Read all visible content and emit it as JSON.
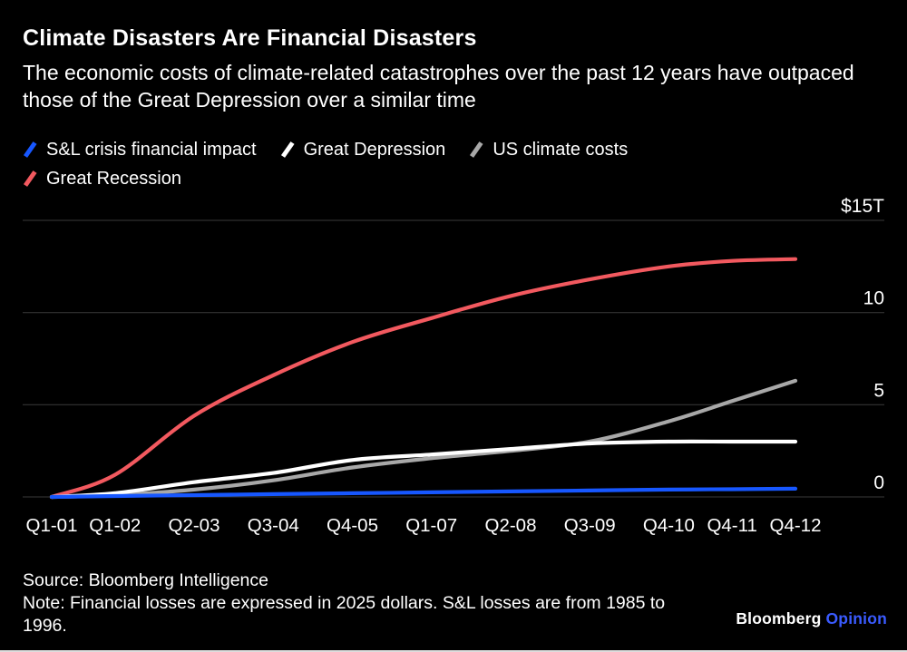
{
  "header": {
    "title": "Climate Disasters Are Financial Disasters",
    "subtitle": "The economic costs of climate-related catastrophes over the past 12 years have outpaced those of the Great Depression over a similar time"
  },
  "legend": [
    {
      "label": "S&L crisis financial impact",
      "color": "#1757ff"
    },
    {
      "label": "Great Depression",
      "color": "#ffffff"
    },
    {
      "label": "US climate costs",
      "color": "#a8a8a8"
    },
    {
      "label": "Great Recession",
      "color": "#f2595f"
    }
  ],
  "chart_data": {
    "type": "line",
    "title": "Climate Disasters Are Financial Disasters",
    "unit": "trillions of 2025 US dollars",
    "x_labels": [
      "Q1-01",
      "Q1-02",
      "Q2-03",
      "Q3-04",
      "Q4-05",
      "Q1-07",
      "Q2-08",
      "Q3-09",
      "Q4-10",
      "Q4-11",
      "Q4-12"
    ],
    "x_quarters": [
      0,
      4,
      9,
      14,
      19,
      24,
      29,
      34,
      39,
      43,
      47
    ],
    "y_ticks": [
      {
        "value": 15,
        "label": "$15T"
      },
      {
        "value": 10,
        "label": "10"
      },
      {
        "value": 5,
        "label": "5"
      },
      {
        "value": 0,
        "label": "0"
      }
    ],
    "ylim": [
      0,
      15
    ],
    "grid": true,
    "grid_color": "#3a3a3a",
    "text_color": "#ffffff",
    "legend_position": "top-left",
    "series": [
      {
        "name": "Great Recession",
        "color": "#f2595f",
        "values": [
          0,
          1.2,
          4.4,
          6.6,
          8.4,
          9.7,
          10.9,
          11.8,
          12.5,
          12.8,
          12.9
        ]
      },
      {
        "name": "US climate costs",
        "color": "#a8a8a8",
        "values": [
          0,
          0.1,
          0.4,
          0.9,
          1.6,
          2.1,
          2.5,
          3.0,
          4.1,
          5.2,
          6.3
        ]
      },
      {
        "name": "Great Depression",
        "color": "#ffffff",
        "values": [
          0,
          0.2,
          0.8,
          1.3,
          2.0,
          2.3,
          2.6,
          2.9,
          3.0,
          3.0,
          3.0
        ]
      },
      {
        "name": "S&L crisis financial impact",
        "color": "#1757ff",
        "values": [
          0,
          0.05,
          0.1,
          0.15,
          0.2,
          0.25,
          0.3,
          0.35,
          0.4,
          0.42,
          0.45
        ]
      }
    ]
  },
  "footer": {
    "source": "Source: Bloomberg Intelligence",
    "note": "Note: Financial losses are expressed in 2025 dollars. S&L losses are from 1985 to 1996.",
    "brand": {
      "first": "Bloomberg",
      "second": "Opinion",
      "second_color": "#3a5bff"
    }
  }
}
